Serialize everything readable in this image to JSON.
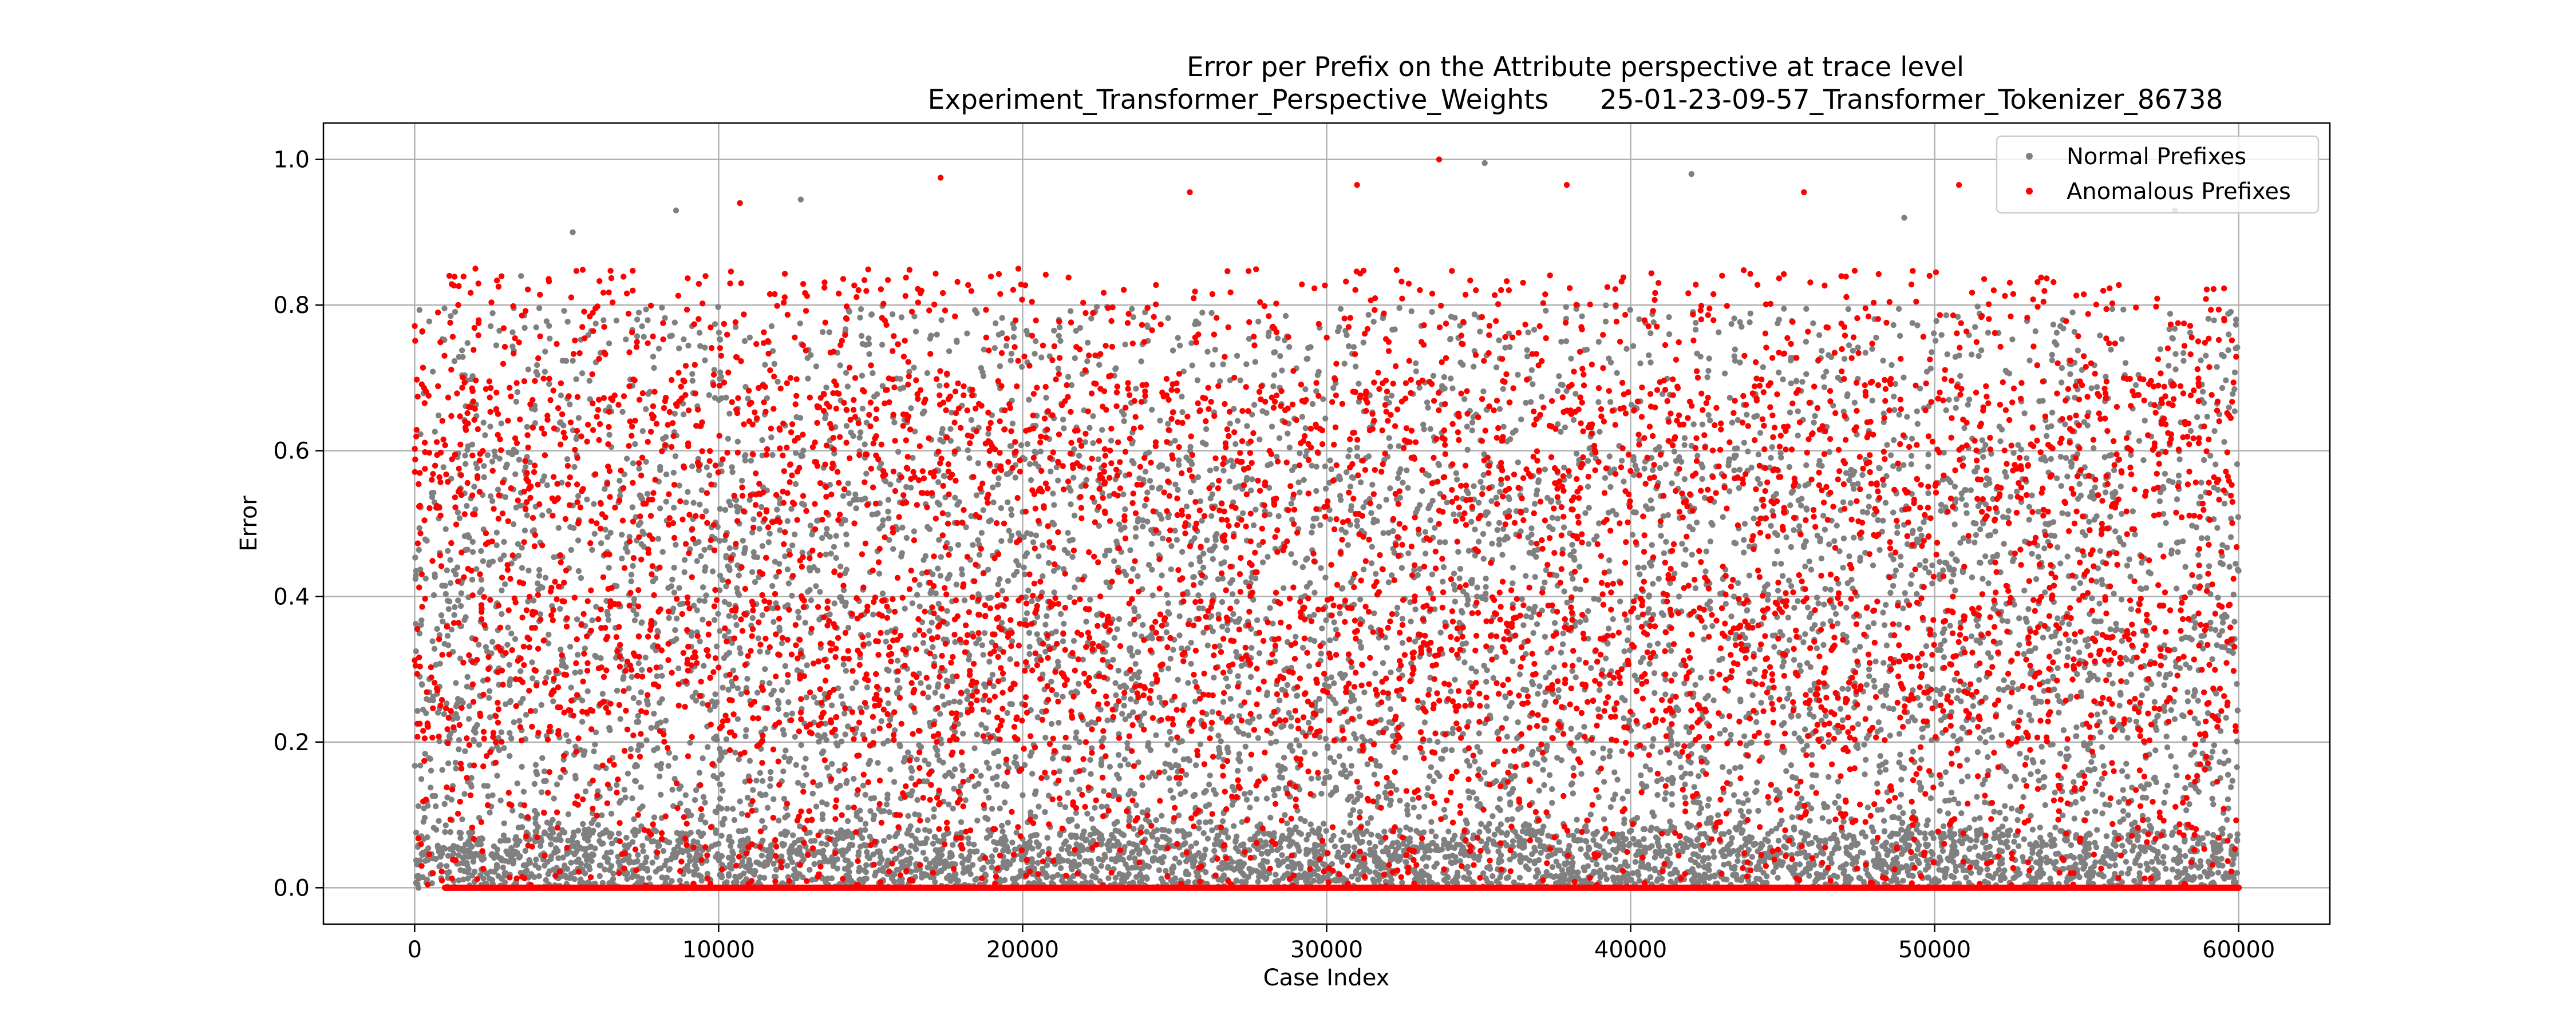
{
  "chart_data": {
    "type": "scatter",
    "title": "Error per Prefix on the Attribute perspective at trace level",
    "subtitle": "Experiment_Transformer_Perspective_Weights      25-01-23-09-57_Transformer_Tokenizer_86738",
    "xlabel": "Case Index",
    "ylabel": "Error",
    "xlim": [
      -3000,
      63000
    ],
    "ylim": [
      -0.05,
      1.05
    ],
    "x_ticks": [
      0,
      10000,
      20000,
      30000,
      40000,
      50000,
      60000
    ],
    "x_tick_labels": [
      "0",
      "10000",
      "20000",
      "30000",
      "40000",
      "50000",
      "60000"
    ],
    "y_ticks": [
      0.0,
      0.2,
      0.4,
      0.6,
      0.8,
      1.0
    ],
    "y_tick_labels": [
      "0.0",
      "0.2",
      "0.4",
      "0.6",
      "0.8",
      "1.0"
    ],
    "grid": true,
    "legend_position": "top-right",
    "series": [
      {
        "name": "Normal Prefixes",
        "color": "#808080",
        "x_range": [
          0,
          60000
        ],
        "y_range": [
          0.0,
          1.0
        ],
        "note_points": [
          {
            "x": 35200,
            "y": 0.995
          },
          {
            "x": 42000,
            "y": 0.98
          },
          {
            "x": 8600,
            "y": 0.93
          },
          {
            "x": 12700,
            "y": 0.945
          },
          {
            "x": 3500,
            "y": 0.84
          },
          {
            "x": 5200,
            "y": 0.9
          },
          {
            "x": 49000,
            "y": 0.92
          },
          {
            "x": 57900,
            "y": 0.93
          }
        ]
      },
      {
        "name": "Anomalous Prefixes",
        "color": "#ff0000",
        "x_range": [
          0,
          60000
        ],
        "y_range": [
          0.0,
          1.0
        ],
        "baseline_y": 0.0,
        "note_points": [
          {
            "x": 33700,
            "y": 1.0
          },
          {
            "x": 17300,
            "y": 0.975
          },
          {
            "x": 37900,
            "y": 0.965
          },
          {
            "x": 31000,
            "y": 0.965
          },
          {
            "x": 50800,
            "y": 0.965
          },
          {
            "x": 10700,
            "y": 0.94
          },
          {
            "x": 45700,
            "y": 0.955
          },
          {
            "x": 25500,
            "y": 0.955
          },
          {
            "x": 2000,
            "y": 0.85
          },
          {
            "x": 600,
            "y": 0.02
          },
          {
            "x": 900,
            "y": 0.01
          }
        ]
      }
    ]
  }
}
